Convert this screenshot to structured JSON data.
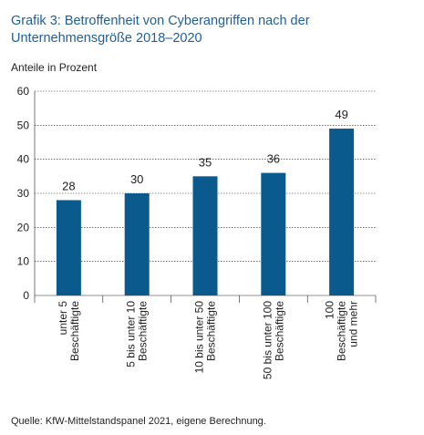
{
  "title": "Grafik 3: Betroffenheit von Cyberangriffen nach der Unternehmensgröße 2018–2020",
  "unit_label": "Anteile in Prozent",
  "source": "Quelle: KfW-Mittelstandspanel 2021, eigene Berechnung.",
  "colors": {
    "bar": "#0b5a8e",
    "title": "#1f5f96",
    "grid": "#222222"
  },
  "chart_data": {
    "type": "bar",
    "title": "Grafik 3: Betroffenheit von Cyberangriffen nach der Unternehmensgröße 2018–2020",
    "ylabel": "Anteile in Prozent",
    "xlabel": "",
    "ylim": [
      0,
      60
    ],
    "yticks": [
      0,
      10,
      20,
      30,
      40,
      50,
      60
    ],
    "grid": true,
    "categories": [
      [
        "unter 5",
        "Beschäftigte"
      ],
      [
        "5 bis unter 10",
        "Beschäftigte"
      ],
      [
        "10 bis unter 50",
        "Beschäftigte"
      ],
      [
        "50 bis unter 100",
        "Beschäftigte"
      ],
      [
        "100",
        "Beschäftigte",
        "und mehr"
      ]
    ],
    "values": [
      28,
      30,
      35,
      36,
      49
    ],
    "data_labels": [
      "28",
      "30",
      "35",
      "36",
      "49"
    ]
  }
}
